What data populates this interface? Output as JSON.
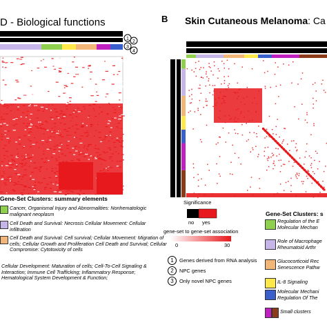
{
  "left_panel": {
    "title": "D - Biological functions",
    "cluster_legend_title": "Gene-Set Clusters: summary elements",
    "clusters": [
      {
        "color": "#8fd14f",
        "text": "Cancer, Organismal Injury and Abnormalities: Nonhematologic malignant neoplasm"
      },
      {
        "color": "#c6b5e8",
        "text": "Cell Death and Survival: Necrosis Cellular Movement: Cellular infiltration"
      },
      {
        "color": "#f2b679",
        "text": "Cell Death and Survival: Cell survival; Cellular Movement: Migration of cells; Cellular Growth and Proliferation Cell Death and Survival; Cellular Compromise: Cytotoxicity of cells"
      },
      {
        "color": "",
        "text": "Cellular Development: Maturation of cells; Cell-To-Cell Signaling & Interaction; Immune Cell Trafficking; Inflammatory Response; Hematological System Development & Function;"
      }
    ]
  },
  "right_panel": {
    "panel_letter": "B",
    "title_bold": "Skin Cutaneous Melanoma",
    "title_suffix": ": Ca",
    "significance": {
      "title": "Significance",
      "no": "no",
      "yes": "yes"
    },
    "association": {
      "title": "gene-set to gene-set association",
      "min": "0",
      "max": "30"
    },
    "circle_legend": [
      {
        "num": "1",
        "text": "Genes derived from RNA analysis"
      },
      {
        "num": "2",
        "text": "NPC genes"
      },
      {
        "num": "3",
        "text": "Only novel NPC genes"
      },
      {
        "num": "4",
        "text": ""
      }
    ],
    "cluster_legend_title": "Gene-Set Clusters: s",
    "clusters": [
      {
        "color": "#8fd14f",
        "text": "Regulation of the E Molecular Mechan"
      },
      {
        "color": "#c6b5e8",
        "text": "Role of Macrophage Rheumatoid Arthr"
      },
      {
        "color": "#f2b679",
        "text": "Glucocorticoid Rec Senescence Pathw"
      },
      {
        "color": "#ffe94a",
        "text": "IL-8 Signaling"
      },
      {
        "color": "#3a5fcd",
        "text": "Molecular Mechani Regulation Of The"
      },
      {
        "color": "#c020c0",
        "text": "Small clusters",
        "color2": "#8b3a1a"
      }
    ]
  },
  "colors": {
    "red": "#e8191c",
    "black": "#000000",
    "white": "#ffffff"
  }
}
